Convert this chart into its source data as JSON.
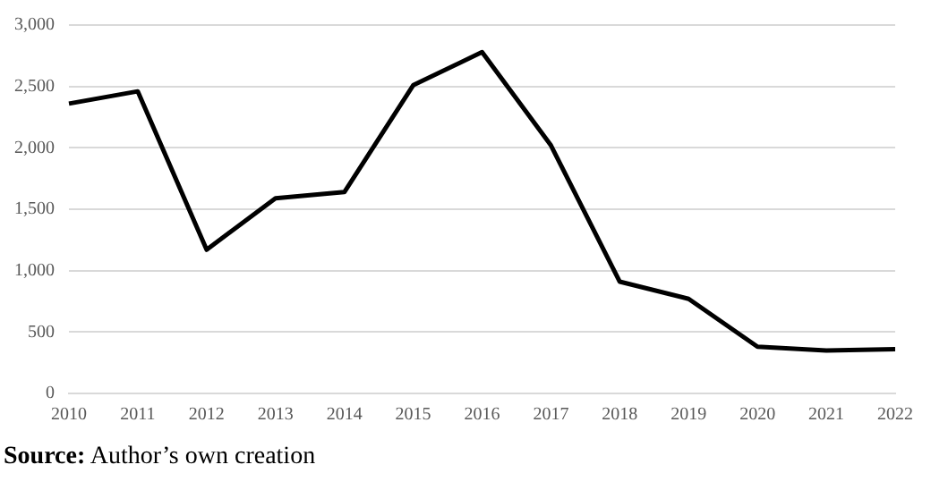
{
  "chart_data": {
    "type": "line",
    "categories": [
      "2010",
      "2011",
      "2012",
      "2013",
      "2014",
      "2015",
      "2016",
      "2017",
      "2018",
      "2019",
      "2020",
      "2021",
      "2022"
    ],
    "series": [
      {
        "color": "#000000",
        "values": [
          2360,
          2460,
          1170,
          1590,
          1640,
          2510,
          2780,
          2020,
          910,
          770,
          380,
          350,
          360
        ]
      }
    ],
    "ylim": [
      0,
      3000
    ],
    "yticks": [
      0,
      {
        "value": 500,
        "label": "500"
      },
      {
        "value": 1000,
        "label": "1,000"
      },
      {
        "value": 1500,
        "label": "1,500"
      },
      {
        "value": 2000,
        "label": "2,000"
      },
      {
        "value": 2500,
        "label": "2,500"
      },
      {
        "value": 3000,
        "label": "3,000"
      }
    ],
    "grid": "y",
    "legend": false,
    "marker": "none",
    "line_style": "solid",
    "annotations": [
      "Source: Author’s own creation"
    ]
  }
}
